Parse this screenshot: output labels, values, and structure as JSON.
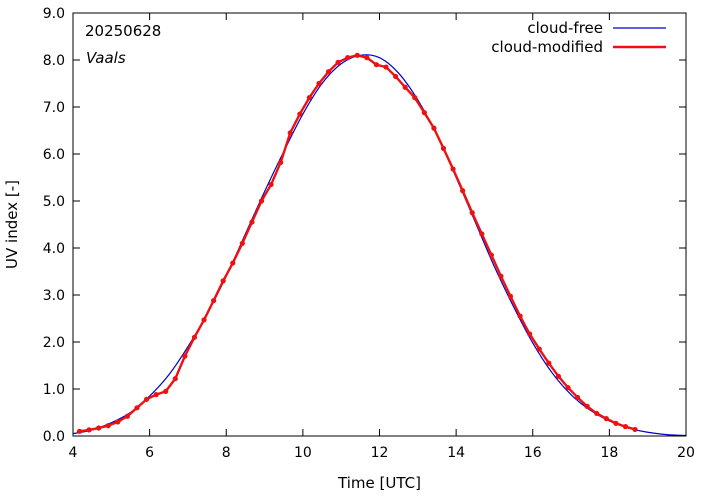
{
  "chart_data": {
    "type": "line",
    "xlabel": "Time  [UTC]",
    "ylabel": "UV index  [-]",
    "xlim": [
      4,
      20
    ],
    "ylim": [
      0,
      9
    ],
    "xticks": [
      4,
      6,
      8,
      10,
      12,
      14,
      16,
      18,
      20
    ],
    "xtick_labels": [
      "4",
      "6",
      "8",
      "10",
      "12",
      "14",
      "16",
      "18",
      "20"
    ],
    "yticks": [
      0,
      1,
      2,
      3,
      4,
      5,
      6,
      7,
      8,
      9
    ],
    "ytick_labels": [
      "0.0",
      "1.0",
      "2.0",
      "3.0",
      "4.0",
      "5.0",
      "6.0",
      "7.0",
      "8.0",
      "9.0"
    ],
    "grid": false,
    "legend_position": "top-right",
    "annotations": [
      "20250628",
      "Vaals"
    ],
    "series": [
      {
        "name": "cloud-free",
        "color": "#0000cc",
        "markers": false,
        "x": [
          4.0,
          4.5,
          5.0,
          5.5,
          6.0,
          6.5,
          7.0,
          7.5,
          8.0,
          8.5,
          9.0,
          9.5,
          10.0,
          10.5,
          11.0,
          11.5,
          12.0,
          12.5,
          13.0,
          13.5,
          14.0,
          14.5,
          15.0,
          15.5,
          16.0,
          16.5,
          17.0,
          17.5,
          18.0,
          18.5,
          19.0,
          19.5,
          20.0
        ],
        "y": [
          0.05,
          0.13,
          0.28,
          0.5,
          0.85,
          1.3,
          1.9,
          2.6,
          3.4,
          4.3,
          5.2,
          6.05,
          6.85,
          7.5,
          7.92,
          8.1,
          8.05,
          7.72,
          7.15,
          6.4,
          5.5,
          4.55,
          3.6,
          2.75,
          1.98,
          1.35,
          0.88,
          0.55,
          0.32,
          0.17,
          0.08,
          0.03,
          0.01
        ]
      },
      {
        "name": "cloud-modified",
        "color": "#ee1111",
        "markers": true,
        "x": [
          4.17,
          4.42,
          4.67,
          4.92,
          5.17,
          5.42,
          5.67,
          5.92,
          6.17,
          6.42,
          6.67,
          6.92,
          7.17,
          7.42,
          7.67,
          7.92,
          8.17,
          8.42,
          8.67,
          8.92,
          9.17,
          9.42,
          9.67,
          9.92,
          10.17,
          10.42,
          10.67,
          10.92,
          11.17,
          11.42,
          11.67,
          11.92,
          12.17,
          12.42,
          12.67,
          12.92,
          13.17,
          13.42,
          13.67,
          13.92,
          14.17,
          14.42,
          14.67,
          14.92,
          15.17,
          15.42,
          15.67,
          15.92,
          16.17,
          16.42,
          16.67,
          16.92,
          17.17,
          17.42,
          17.67,
          17.92,
          18.17,
          18.42,
          18.67
        ],
        "y": [
          0.1,
          0.13,
          0.17,
          0.22,
          0.3,
          0.42,
          0.6,
          0.78,
          0.88,
          0.95,
          1.22,
          1.7,
          2.1,
          2.47,
          2.88,
          3.3,
          3.68,
          4.1,
          4.55,
          5.0,
          5.35,
          5.82,
          6.45,
          6.85,
          7.2,
          7.5,
          7.75,
          7.95,
          8.05,
          8.1,
          8.05,
          7.9,
          7.85,
          7.65,
          7.42,
          7.2,
          6.88,
          6.55,
          6.12,
          5.68,
          5.22,
          4.75,
          4.3,
          3.85,
          3.4,
          2.97,
          2.55,
          2.17,
          1.85,
          1.55,
          1.27,
          1.03,
          0.82,
          0.63,
          0.48,
          0.37,
          0.27,
          0.2,
          0.14
        ]
      }
    ]
  }
}
